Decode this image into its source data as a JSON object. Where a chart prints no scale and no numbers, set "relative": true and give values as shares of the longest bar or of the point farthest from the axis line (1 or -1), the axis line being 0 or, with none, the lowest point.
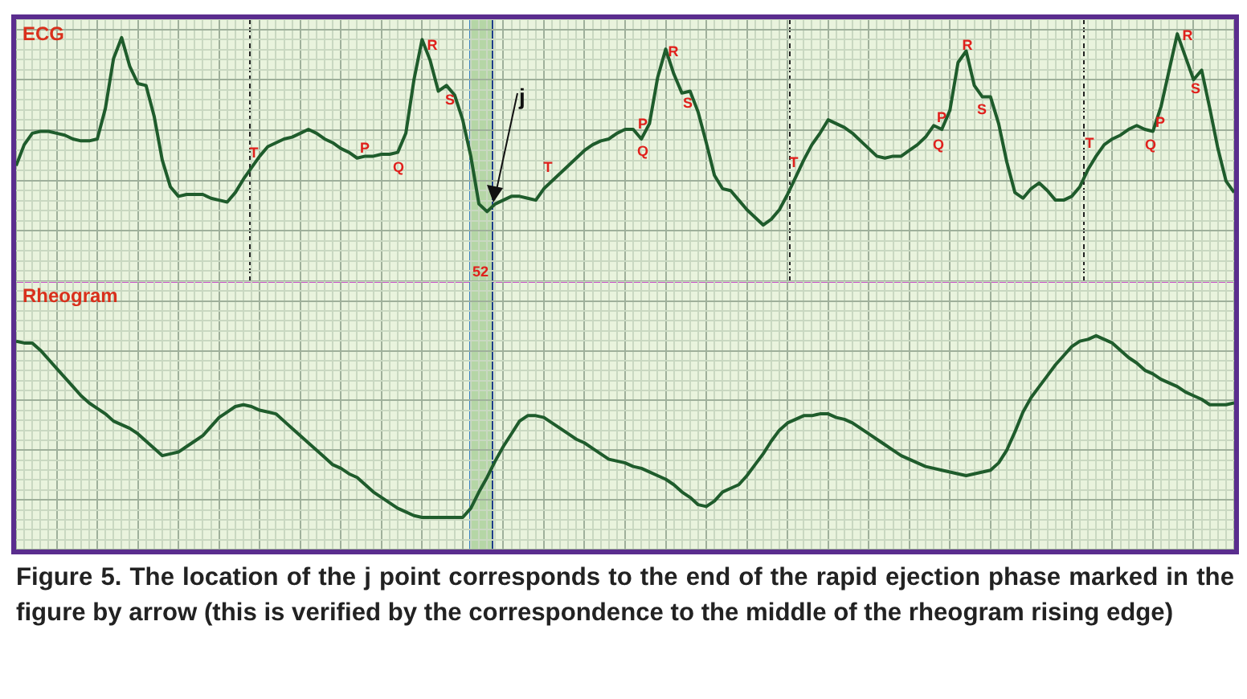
{
  "chart_data": [
    {
      "type": "line",
      "title": "ECG",
      "relative": true,
      "grid": true,
      "marker": "none",
      "categories": [
        null,
        null,
        null,
        null,
        null,
        null,
        null,
        null,
        null,
        null,
        null,
        null,
        null,
        null,
        null,
        null,
        null,
        null,
        null,
        null,
        null,
        null,
        null,
        null,
        null,
        null,
        null,
        null,
        null,
        null,
        null,
        null,
        null,
        null,
        null,
        null,
        null,
        null,
        null,
        null,
        null,
        null,
        null,
        null,
        null,
        null,
        null,
        null,
        null,
        null,
        null,
        null,
        null,
        null,
        null,
        null,
        null,
        null,
        null,
        null,
        null,
        null,
        null,
        null,
        null,
        null,
        null,
        null,
        null,
        null,
        null,
        null,
        null,
        null,
        null,
        null,
        null,
        null,
        null,
        null,
        null,
        null,
        null,
        null,
        null,
        null,
        null,
        null,
        null,
        null,
        null,
        null,
        null,
        null,
        null,
        null,
        null,
        null,
        null,
        null,
        null,
        null,
        null,
        null,
        null,
        null,
        null,
        null,
        null,
        null,
        null,
        null,
        null,
        null,
        null,
        null,
        null,
        null,
        null,
        null,
        null,
        null,
        null,
        null,
        null,
        null,
        null,
        null,
        null,
        null,
        null,
        null,
        null,
        null,
        null,
        null,
        null,
        null,
        null,
        null,
        null,
        null,
        null,
        null,
        null,
        null,
        null,
        null,
        null,
        null,
        null
      ],
      "series": [
        {
          "color": "#1f5c2c",
          "values": [
            0.31,
            0.42,
            0.48,
            0.49,
            0.49,
            0.48,
            0.47,
            0.45,
            0.44,
            0.44,
            0.45,
            0.61,
            0.87,
            0.98,
            0.83,
            0.74,
            0.73,
            0.57,
            0.34,
            0.2,
            0.15,
            0.16,
            0.16,
            0.16,
            0.14,
            0.13,
            0.12,
            0.17,
            0.24,
            0.3,
            0.36,
            0.41,
            0.43,
            0.45,
            0.46,
            0.48,
            0.5,
            0.48,
            0.45,
            0.43,
            0.4,
            0.38,
            0.35,
            0.36,
            0.36,
            0.37,
            0.37,
            0.38,
            0.48,
            0.76,
            0.97,
            0.86,
            0.7,
            0.73,
            0.68,
            0.55,
            0.36,
            0.11,
            0.07,
            0.11,
            0.13,
            0.15,
            0.15,
            0.14,
            0.13,
            0.19,
            0.23,
            0.27,
            0.31,
            0.35,
            0.39,
            0.42,
            0.44,
            0.45,
            0.48,
            0.5,
            0.5,
            0.45,
            0.53,
            0.77,
            0.92,
            0.79,
            0.69,
            0.7,
            0.59,
            0.43,
            0.26,
            0.19,
            0.18,
            0.13,
            0.08,
            0.04,
            0.0,
            0.03,
            0.08,
            0.16,
            0.25,
            0.34,
            0.42,
            0.48,
            0.55,
            0.53,
            0.51,
            0.48,
            0.44,
            0.4,
            0.36,
            0.35,
            0.36,
            0.36,
            0.39,
            0.42,
            0.46,
            0.52,
            0.5,
            0.6,
            0.85,
            0.91,
            0.73,
            0.67,
            0.67,
            0.53,
            0.33,
            0.17,
            0.14,
            0.19,
            0.22,
            0.18,
            0.13,
            0.13,
            0.15,
            0.2,
            0.29,
            0.36,
            0.42,
            0.45,
            0.47,
            0.5,
            0.52,
            0.5,
            0.49,
            0.62,
            0.81,
            1.0,
            0.88,
            0.76,
            0.81,
            0.61,
            0.4,
            0.23,
            0.17
          ]
        }
      ],
      "annotations": [
        "T",
        "P",
        "Q",
        "R",
        "S",
        "j",
        "52",
        "T",
        "P",
        "Q",
        "R",
        "S",
        "T",
        "P",
        "Q",
        "R",
        "S",
        "T",
        "P",
        "Q",
        "R",
        "S"
      ]
    },
    {
      "type": "line",
      "title": "Rheogram",
      "relative": true,
      "grid": true,
      "marker": "none",
      "categories": [
        null,
        null,
        null,
        null,
        null,
        null,
        null,
        null,
        null,
        null,
        null,
        null,
        null,
        null,
        null,
        null,
        null,
        null,
        null,
        null,
        null,
        null,
        null,
        null,
        null,
        null,
        null,
        null,
        null,
        null,
        null,
        null,
        null,
        null,
        null,
        null,
        null,
        null,
        null,
        null,
        null,
        null,
        null,
        null,
        null,
        null,
        null,
        null,
        null,
        null,
        null,
        null,
        null,
        null,
        null,
        null,
        null,
        null,
        null,
        null,
        null,
        null,
        null,
        null,
        null,
        null,
        null,
        null,
        null,
        null,
        null,
        null,
        null,
        null,
        null,
        null,
        null,
        null,
        null,
        null,
        null,
        null,
        null,
        null,
        null,
        null,
        null,
        null,
        null,
        null,
        null,
        null,
        null,
        null,
        null,
        null,
        null,
        null,
        null,
        null,
        null,
        null,
        null,
        null,
        null,
        null,
        null,
        null,
        null,
        null,
        null,
        null,
        null,
        null,
        null,
        null,
        null,
        null,
        null,
        null,
        null,
        null,
        null,
        null,
        null,
        null,
        null,
        null,
        null,
        null,
        null,
        null,
        null,
        null,
        null,
        null,
        null,
        null,
        null,
        null,
        null,
        null,
        null,
        null,
        null,
        null,
        null,
        null,
        null,
        null,
        null
      ],
      "series": [
        {
          "color": "#1f5c2c",
          "values": [
            0.97,
            0.96,
            0.96,
            0.92,
            0.87,
            0.82,
            0.77,
            0.72,
            0.67,
            0.63,
            0.6,
            0.57,
            0.53,
            0.51,
            0.49,
            0.46,
            0.42,
            0.38,
            0.34,
            0.35,
            0.36,
            0.39,
            0.42,
            0.45,
            0.5,
            0.55,
            0.58,
            0.61,
            0.62,
            0.61,
            0.59,
            0.58,
            0.57,
            0.53,
            0.49,
            0.45,
            0.41,
            0.37,
            0.33,
            0.29,
            0.27,
            0.24,
            0.22,
            0.18,
            0.14,
            0.11,
            0.08,
            0.05,
            0.03,
            0.01,
            0.0,
            0.0,
            0.0,
            0.0,
            0.0,
            0.0,
            0.05,
            0.14,
            0.22,
            0.31,
            0.39,
            0.46,
            0.53,
            0.56,
            0.56,
            0.55,
            0.52,
            0.49,
            0.46,
            0.43,
            0.41,
            0.38,
            0.35,
            0.32,
            0.31,
            0.3,
            0.28,
            0.27,
            0.25,
            0.23,
            0.21,
            0.18,
            0.14,
            0.11,
            0.07,
            0.06,
            0.09,
            0.14,
            0.16,
            0.18,
            0.23,
            0.29,
            0.35,
            0.42,
            0.48,
            0.52,
            0.54,
            0.56,
            0.56,
            0.57,
            0.57,
            0.55,
            0.54,
            0.52,
            0.49,
            0.46,
            0.43,
            0.4,
            0.37,
            0.34,
            0.32,
            0.3,
            0.28,
            0.27,
            0.26,
            0.25,
            0.24,
            0.23,
            0.24,
            0.25,
            0.26,
            0.3,
            0.37,
            0.47,
            0.58,
            0.66,
            0.72,
            0.78,
            0.84,
            0.89,
            0.94,
            0.97,
            0.98,
            1.0,
            0.98,
            0.96,
            0.92,
            0.88,
            0.85,
            0.81,
            0.79,
            0.76,
            0.74,
            0.72,
            0.69,
            0.67,
            0.65,
            0.62,
            0.62,
            0.62,
            0.63
          ]
        }
      ],
      "annotations": [
        "Figure 5. The location of the j point corresponds to the end of the rapid ejection phase marked in the figure by arrow (this is verified by the correspondence to the middle of the rheogram rising edge)"
      ]
    }
  ]
}
